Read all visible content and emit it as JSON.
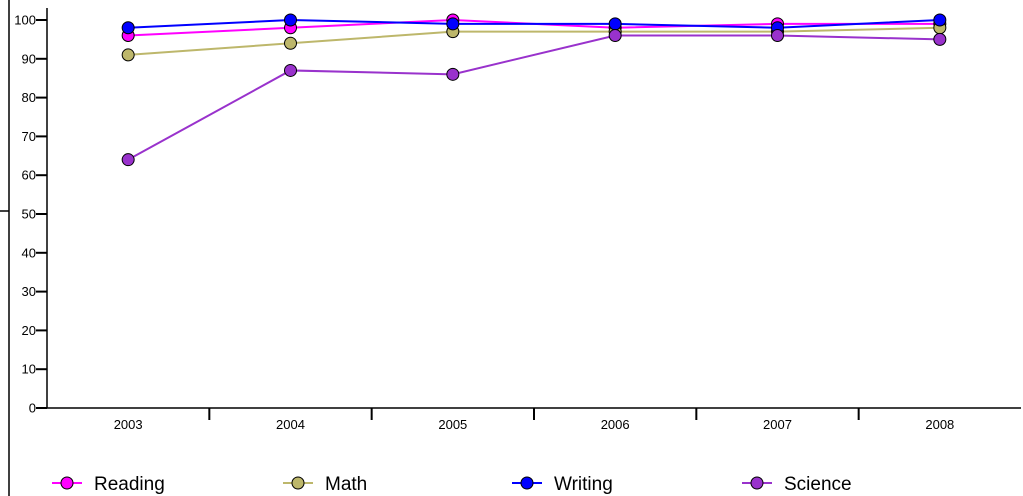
{
  "chart_data": {
    "type": "line",
    "title": "",
    "xlabel": "",
    "ylabel": "",
    "categories": [
      "2003",
      "2004",
      "2005",
      "2006",
      "2007",
      "2008"
    ],
    "ylim": [
      0,
      100
    ],
    "y_ticks": [
      "0",
      "10",
      "20",
      "30",
      "40",
      "50",
      "60",
      "70",
      "80",
      "90",
      "100"
    ],
    "grid": false,
    "legend_position": "bottom",
    "series": [
      {
        "name": "Reading",
        "color": "#ff00ff",
        "values": [
          96,
          98,
          100,
          98,
          99,
          99
        ]
      },
      {
        "name": "Math",
        "color": "#bdb76b",
        "values": [
          91,
          94,
          97,
          97,
          97,
          98
        ]
      },
      {
        "name": "Writing",
        "color": "#0000ff",
        "values": [
          98,
          100,
          99,
          99,
          98,
          100
        ]
      },
      {
        "name": "Science",
        "color": "#9932cc",
        "values": [
          64,
          87,
          86,
          96,
          96,
          95
        ]
      }
    ]
  }
}
